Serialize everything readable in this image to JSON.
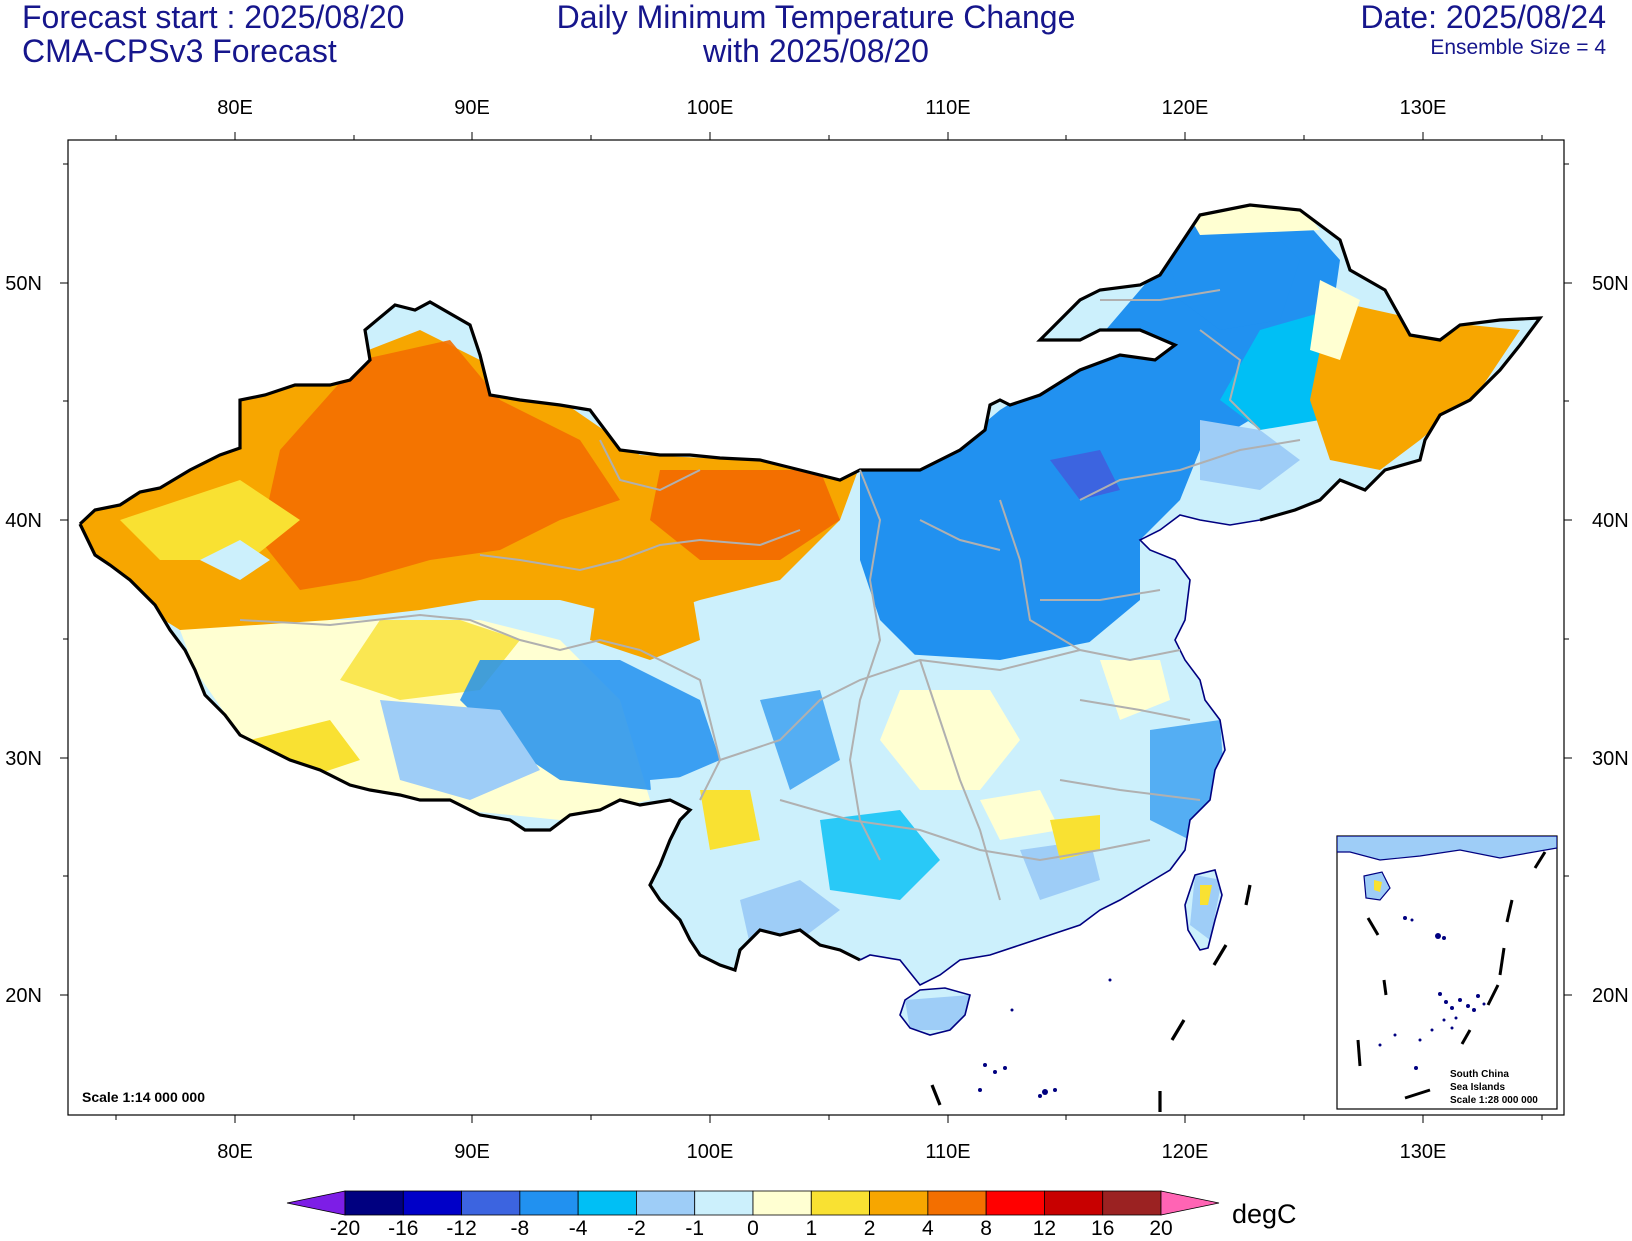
{
  "header": {
    "left_line1": "Forecast start : 2025/08/20",
    "left_line2": "CMA-CPSv3 Forecast",
    "center_line1": "Daily Minimum Temperature Change",
    "center_line2": "with 2025/08/20",
    "right_line1": "Date: 2025/08/24",
    "right_line2": "Ensemble Size = 4"
  },
  "map": {
    "lon_range": [
      73,
      136
    ],
    "lat_range": [
      15,
      56
    ],
    "lon_ticks": [
      "80E",
      "90E",
      "100E",
      "110E",
      "120E",
      "130E"
    ],
    "lat_ticks": [
      "50N",
      "40N",
      "30N",
      "20N"
    ],
    "scale_note": "Scale 1:14 000 000",
    "inset": {
      "line1": "South China",
      "line2": "Sea Islands",
      "line3": "Scale 1:28 000 000"
    }
  },
  "colorbar": {
    "unit": "degC",
    "labels": [
      "-20",
      "-16",
      "-12",
      "-8",
      "-4",
      "-2",
      "-1",
      "0",
      "1",
      "2",
      "4",
      "8",
      "12",
      "16",
      "20"
    ],
    "colors": {
      "below": "#7d1ee6",
      "bins": [
        "#000080",
        "#0000c8",
        "#3c64e0",
        "#2191f0",
        "#00bff5",
        "#9ecdf7",
        "#ccf0fc",
        "#ffffd2",
        "#f9e132",
        "#f7a600",
        "#f36f00",
        "#ff0000",
        "#c80000",
        "#9b2222"
      ],
      "above": "#ff64b4"
    }
  }
}
